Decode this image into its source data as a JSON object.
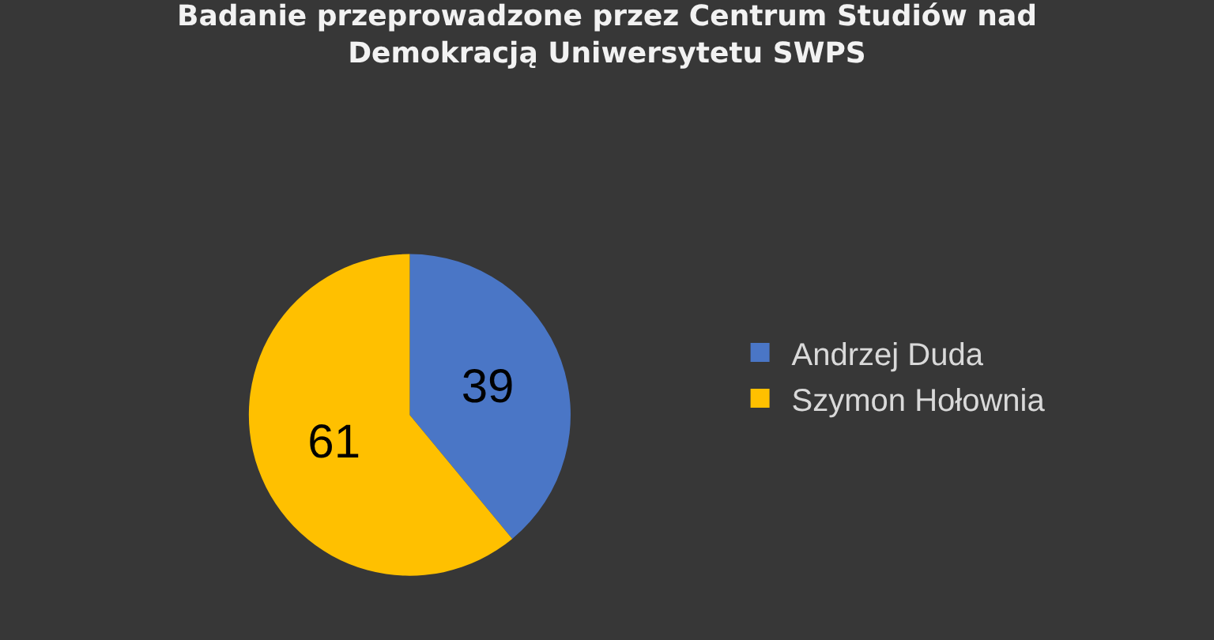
{
  "chart_data": {
    "type": "pie",
    "title": "Badanie przeprowadzone przez Centrum Studiów nad Demokracją Uniwersytetu SWPS",
    "categories": [
      "Andrzej Duda",
      "Szymon Hołownia"
    ],
    "values": [
      39,
      61
    ],
    "colors": [
      "#4a76c6",
      "#ffc000"
    ],
    "data_labels": true,
    "legend": "right"
  }
}
